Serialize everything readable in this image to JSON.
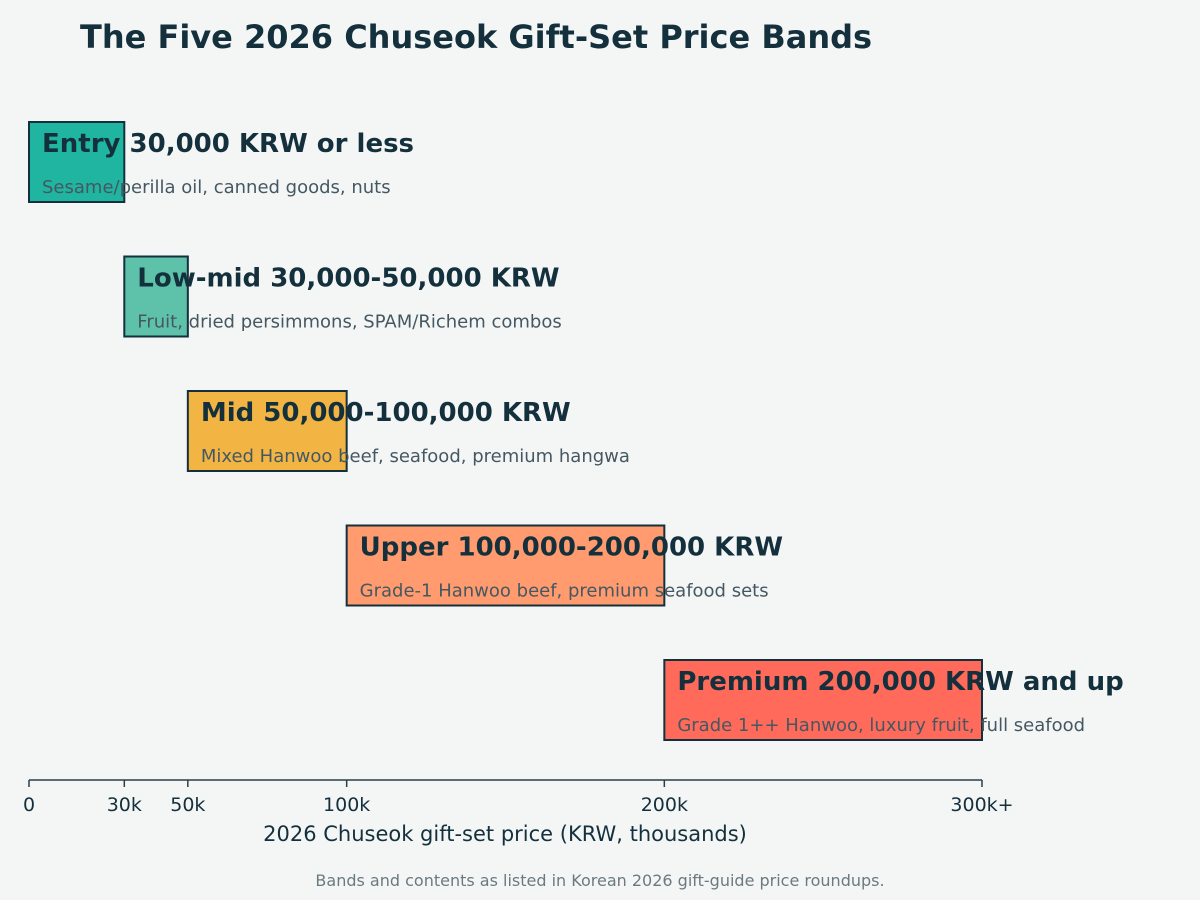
{
  "chart_data": {
    "type": "bar",
    "orientation": "horizontal-range",
    "title": "The Five 2026 Chuseok Gift-Set Price Bands",
    "xlabel": "2026 Chuseok gift-set price (KRW, thousands)",
    "ylabel": "",
    "xlim": [
      0,
      300
    ],
    "grid": false,
    "legend": "none",
    "ticks": [
      {
        "value": 0,
        "label": "0"
      },
      {
        "value": 30,
        "label": "30k"
      },
      {
        "value": 50,
        "label": "50k"
      },
      {
        "value": 100,
        "label": "100k"
      },
      {
        "value": 200,
        "label": "200k"
      },
      {
        "value": 300,
        "label": "300k+"
      }
    ],
    "bands": [
      {
        "name": "Entry",
        "range_label": "30,000 KRW or less",
        "start": 0,
        "end": 30,
        "contents": "Sesame/perilla oil, canned goods, nuts",
        "color": "#1fb5a1"
      },
      {
        "name": "Low-mid",
        "range_label": "30,000-50,000 KRW",
        "start": 30,
        "end": 50,
        "contents": "Fruit, dried persimmons, SPAM/Richem combos",
        "color": "#5ec2ab"
      },
      {
        "name": "Mid",
        "range_label": "50,000-100,000 KRW",
        "start": 50,
        "end": 100,
        "contents": "Mixed Hanwoo beef, seafood, premium hangwa",
        "color": "#f2b544"
      },
      {
        "name": "Upper",
        "range_label": "100,000-200,000 KRW",
        "start": 100,
        "end": 200,
        "contents": "Grade-1 Hanwoo beef, premium seafood sets",
        "color": "#ff9b6e"
      },
      {
        "name": "Premium",
        "range_label": "200,000 KRW and up",
        "start": 200,
        "end": 300,
        "contents": "Grade 1++ Hanwoo, luxury fruit, full seafood",
        "color": "#ff6a5a"
      }
    ],
    "footnote": "Bands and contents as listed in Korean 2026 gift-guide price roundups."
  },
  "colors": {
    "background": "#f4f6f6",
    "text_dark": "#14303c",
    "text_muted": "#455862",
    "bar_stroke": "#14303c",
    "axis": "#2b3f48"
  }
}
